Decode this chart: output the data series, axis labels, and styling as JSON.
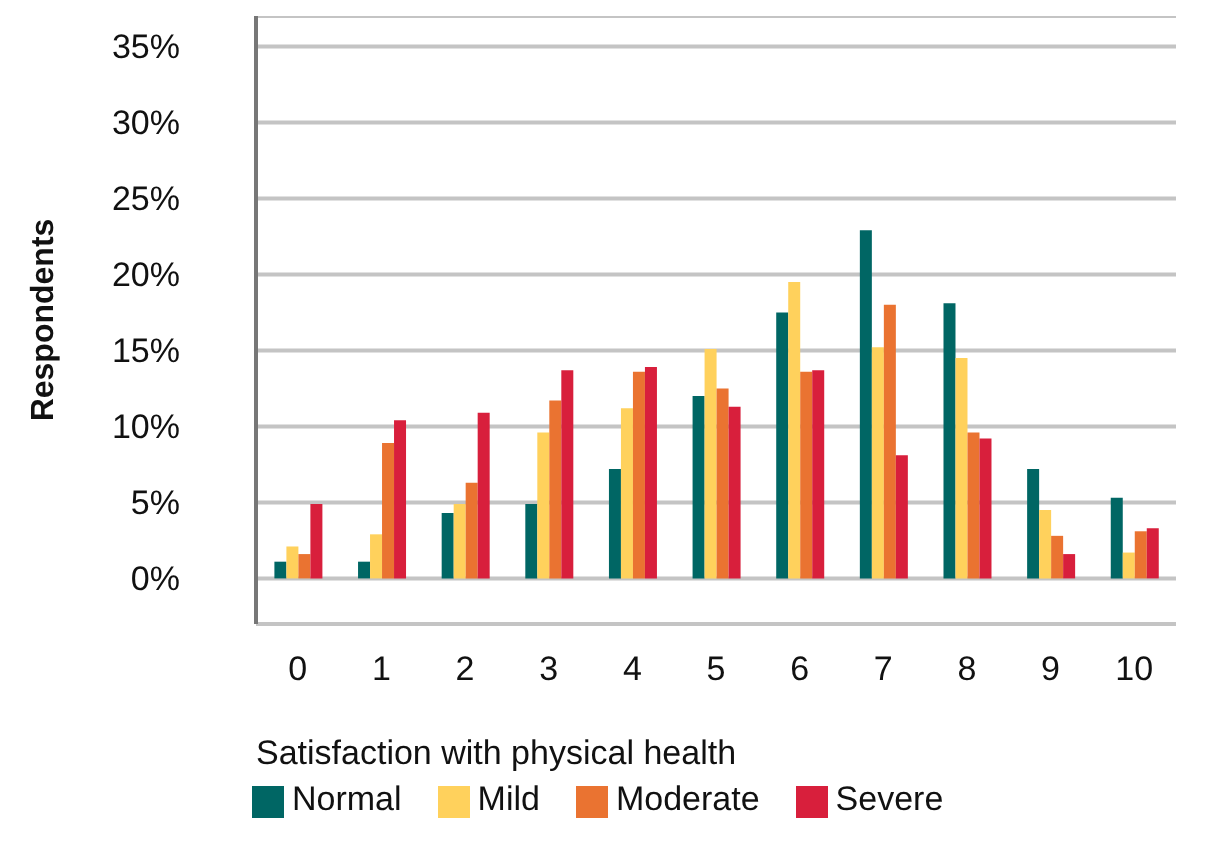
{
  "chart_data": {
    "type": "bar",
    "xlabel": "Satisfaction with physical health",
    "ylabel": "Respondents",
    "categories": [
      "0",
      "1",
      "2",
      "3",
      "4",
      "5",
      "6",
      "7",
      "8",
      "9",
      "10"
    ],
    "series": [
      {
        "name": "Normal",
        "color": "#006664",
        "values": [
          1.1,
          1.1,
          4.3,
          4.9,
          7.2,
          12.0,
          17.5,
          22.9,
          18.1,
          7.2,
          5.3
        ]
      },
      {
        "name": "Mild",
        "color": "#ffd15c",
        "values": [
          2.1,
          2.9,
          4.9,
          9.6,
          11.2,
          15.1,
          19.5,
          15.2,
          14.5,
          4.5,
          1.7
        ]
      },
      {
        "name": "Moderate",
        "color": "#ea7331",
        "values": [
          1.6,
          8.9,
          6.3,
          11.7,
          13.6,
          12.5,
          13.6,
          18.0,
          9.6,
          2.8,
          3.1
        ]
      },
      {
        "name": "Severe",
        "color": "#d81f3c",
        "values": [
          4.9,
          10.4,
          10.9,
          13.7,
          13.9,
          11.3,
          13.7,
          8.1,
          9.2,
          1.6,
          3.3
        ]
      }
    ],
    "ylim": [
      -3,
      37
    ],
    "yticks": [
      {
        "value": 0,
        "label": "0%"
      },
      {
        "value": 5,
        "label": "5%"
      },
      {
        "value": 10,
        "label": "10%"
      },
      {
        "value": 15,
        "label": "15%"
      },
      {
        "value": 20,
        "label": "20%"
      },
      {
        "value": 25,
        "label": "25%"
      },
      {
        "value": 30,
        "label": "30%"
      },
      {
        "value": 35,
        "label": "35%"
      }
    ],
    "grid": "y",
    "legend": "bottom"
  }
}
